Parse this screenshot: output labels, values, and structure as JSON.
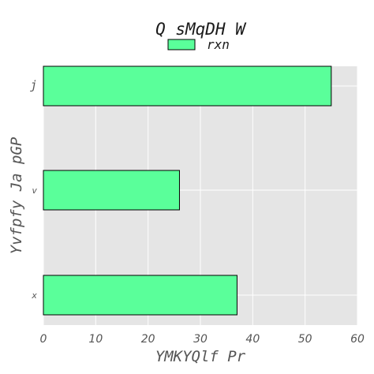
{
  "chart_data": {
    "type": "bar",
    "orientation": "horizontal",
    "title": "Q  sMqDH W",
    "xlabel": "YMKYQlf Pr",
    "ylabel": "Yvfpfy Ja pGP",
    "categories": [
      "j",
      "v",
      "x"
    ],
    "series": [
      {
        "name": "rxn",
        "values": [
          55,
          26,
          37
        ],
        "color": "#5aff9a"
      }
    ],
    "xlim": [
      0,
      60
    ],
    "xticks": [
      "0",
      "10",
      "20",
      "30",
      "40",
      "50",
      "60"
    ],
    "grid": true,
    "legend": "top-center",
    "background": "#e5e5e5"
  }
}
